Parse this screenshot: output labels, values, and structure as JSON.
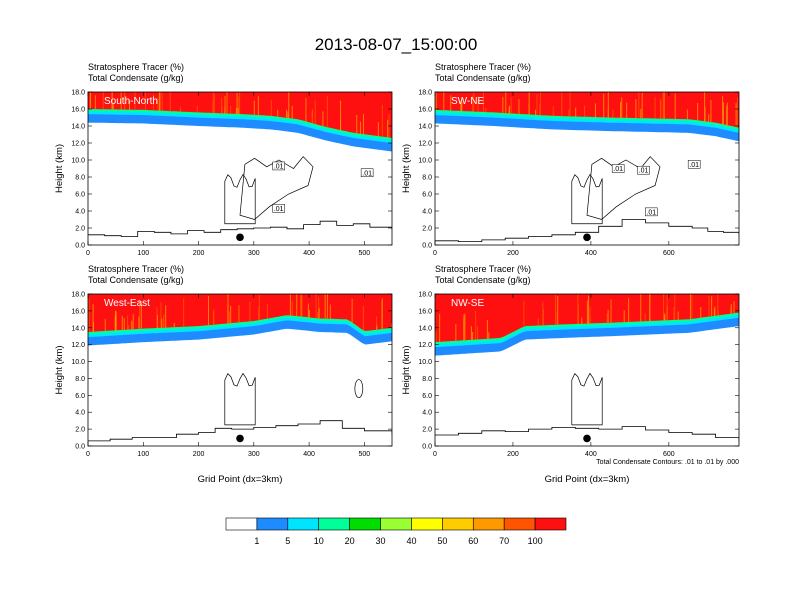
{
  "chart_data": {
    "type": "heatmap",
    "title": "2013-08-07_15:00:00",
    "colorbar": {
      "colors": [
        "#ffffff",
        "#1e8cff",
        "#00e5ff",
        "#00ff99",
        "#00dd00",
        "#99ff33",
        "#ffff00",
        "#ffcc00",
        "#ff9900",
        "#ff5500",
        "#ff1010"
      ],
      "labels": [
        "1",
        "5",
        "10",
        "20",
        "30",
        "40",
        "50",
        "60",
        "70",
        "100"
      ]
    },
    "contour_note": "Total Condensate Contours: .01 to .01 by .000",
    "panels": [
      {
        "name": "South-North",
        "var1": "Stratosphere Tracer   (%)",
        "var2": "Total Condensate   (g/kg)",
        "ylabel": "Height (km)",
        "xlabel": "",
        "xlim": [
          0,
          550
        ],
        "xticks": [
          "0",
          "100",
          "200",
          "300",
          "400",
          "500"
        ],
        "xtick_values": [
          0,
          100,
          200,
          300,
          400,
          500
        ],
        "ylim": [
          0,
          18
        ],
        "yticks": [
          "0.0",
          "2.0",
          "4.0",
          "6.0",
          "8.0",
          "10.0",
          "12.0",
          "14.0",
          "16.0",
          "18.0"
        ],
        "tracer_base_km": [
          [
            0,
            14.4
          ],
          [
            100,
            14.3
          ],
          [
            200,
            14.0
          ],
          [
            280,
            13.8
          ],
          [
            330,
            13.6
          ],
          [
            380,
            13.2
          ],
          [
            430,
            12.3
          ],
          [
            480,
            11.6
          ],
          [
            550,
            11.0
          ]
        ],
        "terrain_km": [
          [
            0,
            1.2
          ],
          [
            30,
            1.1
          ],
          [
            60,
            1.0
          ],
          [
            90,
            1.6
          ],
          [
            120,
            1.5
          ],
          [
            150,
            1.3
          ],
          [
            180,
            1.7
          ],
          [
            210,
            1.5
          ],
          [
            240,
            1.8
          ],
          [
            270,
            1.9
          ],
          [
            300,
            2.0
          ],
          [
            330,
            2.1
          ],
          [
            360,
            1.9
          ],
          [
            390,
            2.4
          ],
          [
            420,
            2.8
          ],
          [
            450,
            2.3
          ],
          [
            480,
            2.5
          ],
          [
            510,
            2.1
          ],
          [
            550,
            1.8
          ]
        ],
        "dot": [
          275,
          0.9
        ],
        "contour_labels": [
          {
            "text": ".01",
            "x": 345,
            "y": 9.3
          },
          {
            "text": ".01",
            "x": 505,
            "y": 8.5
          },
          {
            "text": ".01",
            "x": 345,
            "y": 4.3
          }
        ]
      },
      {
        "name": "SW-NE",
        "var1": "Stratosphere Tracer   (%)",
        "var2": "Total Condensate   (g/kg)",
        "ylabel": "Height (km)",
        "xlabel": "",
        "xlim": [
          0,
          780
        ],
        "xticks": [
          "0",
          "200",
          "400",
          "600"
        ],
        "xtick_values": [
          0,
          200,
          400,
          600
        ],
        "ylim": [
          0,
          18
        ],
        "yticks": [
          "0.0",
          "2.0",
          "4.0",
          "6.0",
          "8.0",
          "10.0",
          "12.0",
          "14.0",
          "16.0",
          "18.0"
        ],
        "tracer_base_km": [
          [
            0,
            14.3
          ],
          [
            150,
            14.0
          ],
          [
            300,
            13.6
          ],
          [
            450,
            13.4
          ],
          [
            550,
            13.3
          ],
          [
            650,
            13.2
          ],
          [
            720,
            12.8
          ],
          [
            780,
            12.2
          ]
        ],
        "terrain_km": [
          [
            0,
            0.5
          ],
          [
            60,
            0.4
          ],
          [
            120,
            0.6
          ],
          [
            180,
            0.8
          ],
          [
            240,
            1.0
          ],
          [
            300,
            1.2
          ],
          [
            360,
            1.5
          ],
          [
            420,
            2.2
          ],
          [
            480,
            3.0
          ],
          [
            540,
            2.6
          ],
          [
            600,
            2.2
          ],
          [
            660,
            2.0
          ],
          [
            700,
            1.6
          ],
          [
            740,
            1.5
          ],
          [
            780,
            1.2
          ]
        ],
        "dot": [
          390,
          0.9
        ],
        "contour_labels": [
          {
            "text": ".01",
            "x": 470,
            "y": 9.0
          },
          {
            "text": ".01",
            "x": 535,
            "y": 8.8
          },
          {
            "text": ".01",
            "x": 665,
            "y": 9.5
          },
          {
            "text": ".01",
            "x": 555,
            "y": 3.9
          }
        ]
      },
      {
        "name": "West-East",
        "var1": "Stratosphere Tracer   (%)",
        "var2": "Total Condensate   (g/kg)",
        "ylabel": "Height (km)",
        "xlabel": "Grid Point (dx=3km)",
        "xlim": [
          0,
          550
        ],
        "xticks": [
          "0",
          "100",
          "200",
          "300",
          "400",
          "500"
        ],
        "xtick_values": [
          0,
          100,
          200,
          300,
          400,
          500
        ],
        "ylim": [
          0,
          18
        ],
        "yticks": [
          "0.0",
          "2.0",
          "4.0",
          "6.0",
          "8.0",
          "10.0",
          "12.0",
          "14.0",
          "16.0",
          "18.0"
        ],
        "tracer_base_km": [
          [
            0,
            11.9
          ],
          [
            100,
            12.3
          ],
          [
            200,
            12.6
          ],
          [
            300,
            13.2
          ],
          [
            360,
            13.9
          ],
          [
            420,
            13.5
          ],
          [
            470,
            13.4
          ],
          [
            500,
            12.0
          ],
          [
            550,
            12.4
          ]
        ],
        "terrain_km": [
          [
            0,
            0.6
          ],
          [
            40,
            0.8
          ],
          [
            80,
            1.0
          ],
          [
            120,
            1.0
          ],
          [
            160,
            1.4
          ],
          [
            200,
            1.6
          ],
          [
            230,
            2.1
          ],
          [
            260,
            2.0
          ],
          [
            300,
            2.2
          ],
          [
            340,
            2.4
          ],
          [
            380,
            2.6
          ],
          [
            420,
            3.0
          ],
          [
            460,
            2.1
          ],
          [
            500,
            1.8
          ],
          [
            550,
            1.4
          ]
        ],
        "dot": [
          275,
          0.9
        ],
        "contour_labels": []
      },
      {
        "name": "NW-SE",
        "var1": "Stratosphere Tracer   (%)",
        "var2": "Total Condensate   (g/kg)",
        "ylabel": "Height (km)",
        "xlabel": "Grid Point (dx=3km)",
        "xlim": [
          0,
          780
        ],
        "xticks": [
          "0",
          "200",
          "400",
          "600"
        ],
        "xtick_values": [
          0,
          200,
          400,
          600
        ],
        "ylim": [
          0,
          18
        ],
        "yticks": [
          "0.0",
          "2.0",
          "4.0",
          "6.0",
          "8.0",
          "10.0",
          "12.0",
          "14.0",
          "16.0",
          "18.0"
        ],
        "tracer_base_km": [
          [
            0,
            10.7
          ],
          [
            100,
            11.0
          ],
          [
            170,
            11.2
          ],
          [
            230,
            12.6
          ],
          [
            330,
            12.8
          ],
          [
            450,
            13.0
          ],
          [
            550,
            13.2
          ],
          [
            650,
            13.4
          ],
          [
            780,
            14.2
          ]
        ],
        "terrain_km": [
          [
            0,
            1.3
          ],
          [
            60,
            1.5
          ],
          [
            120,
            1.8
          ],
          [
            180,
            1.7
          ],
          [
            240,
            2.0
          ],
          [
            300,
            2.2
          ],
          [
            360,
            2.1
          ],
          [
            420,
            2.0
          ],
          [
            480,
            2.3
          ],
          [
            540,
            1.9
          ],
          [
            600,
            1.6
          ],
          [
            660,
            1.4
          ],
          [
            720,
            1.0
          ],
          [
            780,
            0.5
          ]
        ],
        "dot": [
          390,
          0.9
        ],
        "contour_labels": []
      }
    ]
  }
}
